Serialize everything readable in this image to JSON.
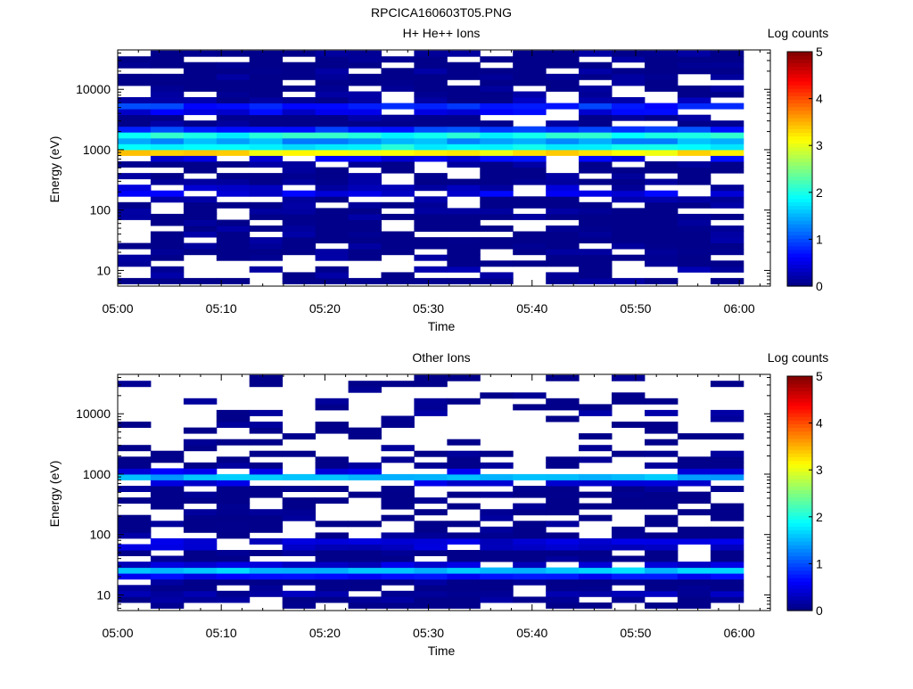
{
  "figure_title": "RPCICA160603T05.PNG",
  "colors": {
    "colormap": [
      "#00008f",
      "#0000ff",
      "#00ffff",
      "#ffff00",
      "#ff0000",
      "#800000"
    ],
    "background": "#ffffff"
  },
  "chart_data": [
    {
      "type": "heatmap",
      "title": "H+ He++ Ions",
      "xlabel": "Time",
      "ylabel": "Energy (eV)",
      "colorbar_label": "Log counts",
      "x_ticks": [
        "05:00",
        "05:10",
        "05:20",
        "05:30",
        "05:40",
        "05:50",
        "06:00"
      ],
      "y_ticks": [
        "10",
        "100",
        "1000",
        "10000"
      ],
      "colorbar_ticks": [
        "0",
        "1",
        "2",
        "3",
        "4",
        "5"
      ],
      "y_scale": "log",
      "y_range_eV": [
        5.5,
        45000
      ],
      "x_range": [
        "05:00",
        "06:03"
      ],
      "colorbar_range": [
        0,
        5
      ],
      "time_bins": 19,
      "energy_bins": 40,
      "band_profile": [
        {
          "energy_eV": 950,
          "log_counts": 3.5
        },
        {
          "energy_eV": 1800,
          "log_counts": 2.0
        },
        {
          "energy_eV": 1300,
          "log_counts": 1.6
        },
        {
          "energy_eV": 5000,
          "log_counts": 0.9
        },
        {
          "energy_eV": 200,
          "log_counts": 0.5
        },
        {
          "energy_eV": 10,
          "log_counts": 0.1
        }
      ],
      "peak_log_counts": 3.7
    },
    {
      "type": "heatmap",
      "title": "Other Ions",
      "xlabel": "Time",
      "ylabel": "Energy (eV)",
      "colorbar_label": "Log counts",
      "x_ticks": [
        "05:00",
        "05:10",
        "05:20",
        "05:30",
        "05:40",
        "05:50",
        "06:00"
      ],
      "y_ticks": [
        "10",
        "100",
        "1000",
        "10000"
      ],
      "colorbar_ticks": [
        "0",
        "1",
        "2",
        "3",
        "4",
        "5"
      ],
      "y_scale": "log",
      "y_range_eV": [
        5.5,
        45000
      ],
      "x_range": [
        "05:00",
        "06:03"
      ],
      "colorbar_range": [
        0,
        5
      ],
      "time_bins": 19,
      "energy_bins": 40,
      "band_profile": [
        {
          "energy_eV": 900,
          "log_counts": 1.5
        },
        {
          "energy_eV": 25,
          "log_counts": 1.6
        },
        {
          "energy_eV": 70,
          "log_counts": 0.5
        },
        {
          "energy_eV": 10,
          "log_counts": 0.2
        },
        {
          "energy_eV": 10000,
          "log_counts": 0.1
        }
      ],
      "peak_log_counts": 1.8
    }
  ]
}
